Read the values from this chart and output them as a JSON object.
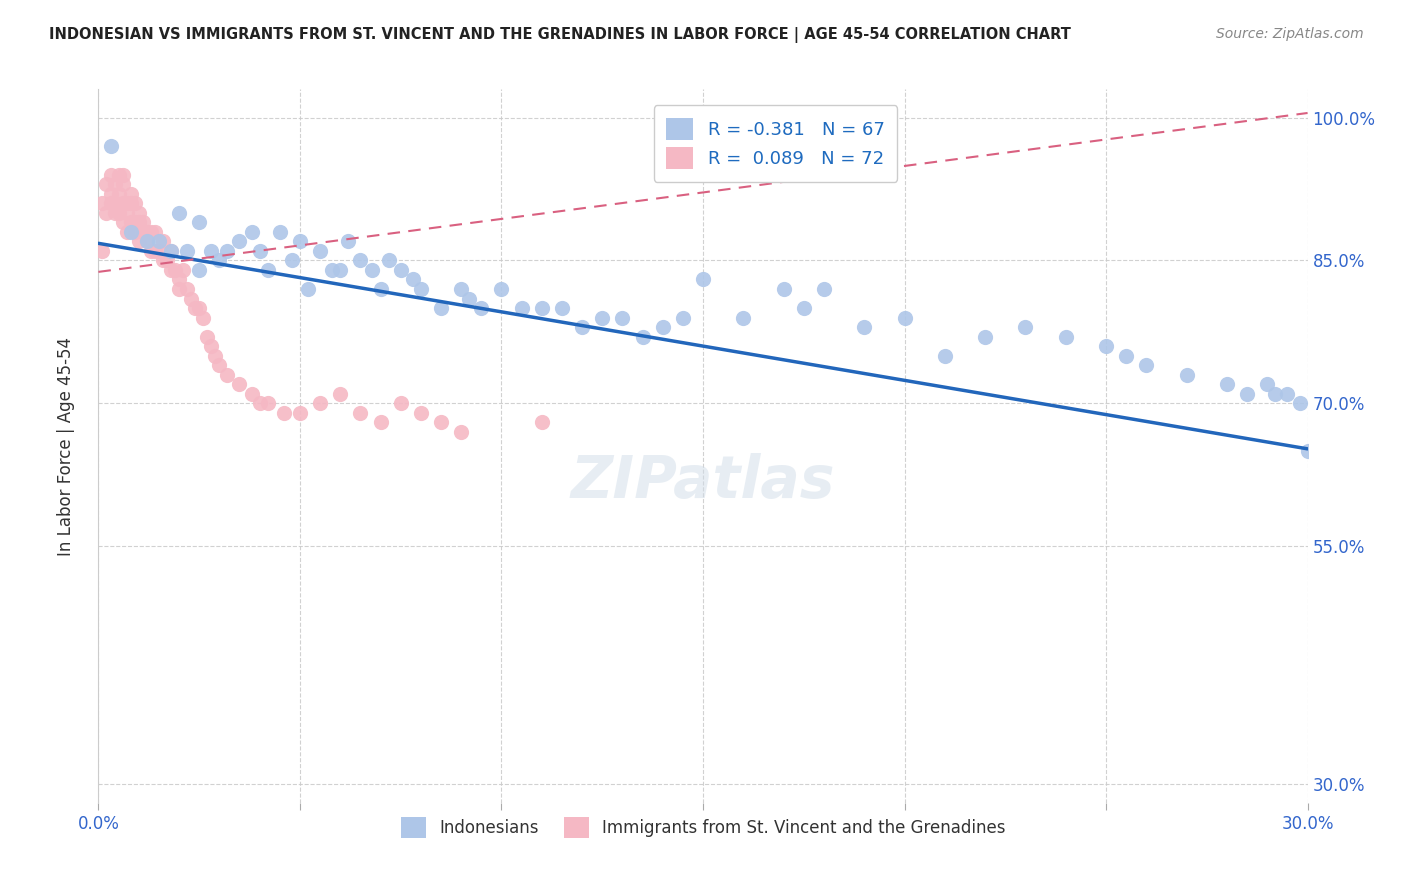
{
  "title": "INDONESIAN VS IMMIGRANTS FROM ST. VINCENT AND THE GRENADINES IN LABOR FORCE | AGE 45-54 CORRELATION CHART",
  "source": "Source: ZipAtlas.com",
  "ylabel": "In Labor Force | Age 45-54",
  "xlim": [
    0.0,
    0.3
  ],
  "ylim": [
    0.28,
    1.03
  ],
  "ytick_positions": [
    0.3,
    0.55,
    0.7,
    0.85,
    1.0
  ],
  "ytick_labels": [
    "30.0%",
    "55.0%",
    "70.0%",
    "85.0%",
    "100.0%"
  ],
  "xtick_positions": [
    0.0,
    0.05,
    0.1,
    0.15,
    0.2,
    0.25,
    0.3
  ],
  "xtick_labels": [
    "0.0%",
    "",
    "",
    "",
    "",
    "",
    "30.0%"
  ],
  "blue_color": "#aec6e8",
  "pink_color": "#f5b8c4",
  "blue_line_color": "#2266bb",
  "pink_line_color": "#d96080",
  "legend_blue_label": "R = -0.381   N = 67",
  "legend_pink_label": "R =  0.089   N = 72",
  "legend_bottom_blue": "Indonesians",
  "legend_bottom_pink": "Immigrants from St. Vincent and the Grenadines",
  "blue_scatter_x": [
    0.003,
    0.008,
    0.012,
    0.015,
    0.018,
    0.02,
    0.022,
    0.025,
    0.025,
    0.028,
    0.03,
    0.032,
    0.035,
    0.038,
    0.04,
    0.042,
    0.045,
    0.048,
    0.05,
    0.052,
    0.055,
    0.058,
    0.06,
    0.062,
    0.065,
    0.068,
    0.07,
    0.072,
    0.075,
    0.078,
    0.08,
    0.085,
    0.09,
    0.092,
    0.095,
    0.1,
    0.105,
    0.11,
    0.115,
    0.12,
    0.125,
    0.13,
    0.135,
    0.14,
    0.145,
    0.15,
    0.16,
    0.17,
    0.175,
    0.18,
    0.19,
    0.2,
    0.21,
    0.22,
    0.23,
    0.24,
    0.25,
    0.255,
    0.26,
    0.27,
    0.28,
    0.285,
    0.29,
    0.292,
    0.295,
    0.298,
    0.3
  ],
  "blue_scatter_y": [
    0.97,
    0.88,
    0.87,
    0.87,
    0.86,
    0.9,
    0.86,
    0.89,
    0.84,
    0.86,
    0.85,
    0.86,
    0.87,
    0.88,
    0.86,
    0.84,
    0.88,
    0.85,
    0.87,
    0.82,
    0.86,
    0.84,
    0.84,
    0.87,
    0.85,
    0.84,
    0.82,
    0.85,
    0.84,
    0.83,
    0.82,
    0.8,
    0.82,
    0.81,
    0.8,
    0.82,
    0.8,
    0.8,
    0.8,
    0.78,
    0.79,
    0.79,
    0.77,
    0.78,
    0.79,
    0.83,
    0.79,
    0.82,
    0.8,
    0.82,
    0.78,
    0.79,
    0.75,
    0.77,
    0.78,
    0.77,
    0.76,
    0.75,
    0.74,
    0.73,
    0.72,
    0.71,
    0.72,
    0.71,
    0.71,
    0.7,
    0.65
  ],
  "pink_scatter_x": [
    0.001,
    0.001,
    0.002,
    0.002,
    0.003,
    0.003,
    0.003,
    0.004,
    0.004,
    0.004,
    0.005,
    0.005,
    0.005,
    0.006,
    0.006,
    0.006,
    0.006,
    0.007,
    0.007,
    0.007,
    0.008,
    0.008,
    0.008,
    0.009,
    0.009,
    0.009,
    0.01,
    0.01,
    0.01,
    0.011,
    0.011,
    0.012,
    0.012,
    0.013,
    0.013,
    0.014,
    0.014,
    0.015,
    0.016,
    0.016,
    0.017,
    0.018,
    0.018,
    0.019,
    0.02,
    0.02,
    0.021,
    0.022,
    0.023,
    0.024,
    0.025,
    0.026,
    0.027,
    0.028,
    0.029,
    0.03,
    0.032,
    0.035,
    0.038,
    0.04,
    0.042,
    0.046,
    0.05,
    0.055,
    0.06,
    0.065,
    0.07,
    0.075,
    0.08,
    0.085,
    0.09,
    0.11
  ],
  "pink_scatter_y": [
    0.91,
    0.86,
    0.93,
    0.9,
    0.94,
    0.92,
    0.91,
    0.93,
    0.91,
    0.9,
    0.94,
    0.92,
    0.9,
    0.94,
    0.93,
    0.91,
    0.89,
    0.91,
    0.9,
    0.88,
    0.92,
    0.91,
    0.89,
    0.91,
    0.89,
    0.88,
    0.9,
    0.89,
    0.87,
    0.89,
    0.88,
    0.88,
    0.87,
    0.88,
    0.86,
    0.88,
    0.86,
    0.86,
    0.87,
    0.85,
    0.85,
    0.86,
    0.84,
    0.84,
    0.83,
    0.82,
    0.84,
    0.82,
    0.81,
    0.8,
    0.8,
    0.79,
    0.77,
    0.76,
    0.75,
    0.74,
    0.73,
    0.72,
    0.71,
    0.7,
    0.7,
    0.69,
    0.69,
    0.7,
    0.71,
    0.69,
    0.68,
    0.7,
    0.69,
    0.68,
    0.67,
    0.68
  ],
  "blue_line_x0": 0.0,
  "blue_line_x1": 0.3,
  "blue_line_y0": 0.868,
  "blue_line_y1": 0.652,
  "pink_line_x0": 0.0,
  "pink_line_x1": 0.3,
  "pink_line_y0": 0.838,
  "pink_line_y1": 1.005
}
